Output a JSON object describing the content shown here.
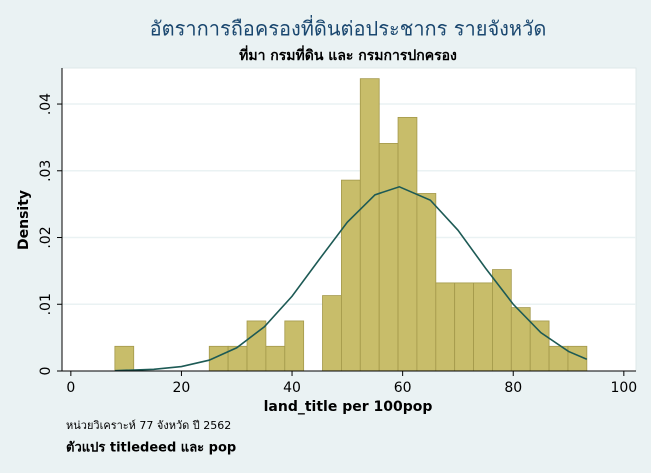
{
  "chart_data": {
    "type": "histogram",
    "title": "อัตราการถือครองที่ดินต่อประชากร รายจังหวัด",
    "subtitle": "ที่มา กรมที่ดิน และ กรมการปกครอง",
    "x_label": "land_title per 100pop",
    "y_label": "Density",
    "notes": [
      "หน่วยวิเคราะห์ 77 จังหวัด ปี 2562",
      "ตัวแปร titledeed และ pop"
    ],
    "bins": [
      7.96,
      11.37,
      14.79,
      18.2,
      21.62,
      25.03,
      28.44,
      31.86,
      35.27,
      38.69,
      42.1,
      45.51,
      48.93,
      52.34,
      55.76,
      59.17,
      62.58,
      66.0,
      69.41,
      72.83,
      76.24,
      79.65,
      83.07,
      86.48,
      89.9,
      93.31
    ],
    "values": [
      0.0037,
      0,
      0,
      0,
      0,
      0.0037,
      0.0037,
      0.0075,
      0.0037,
      0.0075,
      0,
      0.0113,
      0.0286,
      0.0438,
      0.0341,
      0.038,
      0.0266,
      0.0132,
      0.0132,
      0.0132,
      0.0152,
      0.0095,
      0.0075,
      0.0037,
      0.0037
    ],
    "color": "#c8bd6a",
    "edge_color": "#a3984a",
    "overlay": {
      "type": "line",
      "color": "#1d5a55",
      "x": [
        8,
        15,
        20,
        25,
        30,
        35,
        40,
        45,
        50,
        55,
        59.4,
        65,
        70,
        75,
        80,
        85,
        90,
        93.3
      ],
      "values": [
        5e-05,
        0.00025,
        0.00067,
        0.00162,
        0.00348,
        0.00663,
        0.0112,
        0.0168,
        0.0223,
        0.0264,
        0.0276,
        0.0256,
        0.0211,
        0.0154,
        0.01,
        0.00574,
        0.00293,
        0.00176
      ]
    },
    "xlim": [
      -1.6,
      102.2
    ],
    "ylim": [
      0,
      0.0454
    ],
    "xticks": [
      0,
      20,
      40,
      60,
      80,
      100
    ],
    "yticks": [
      0,
      {
        "value": 0.01,
        "label": ".01"
      },
      {
        "value": 0.02,
        "label": ".02"
      },
      {
        "value": 0.03,
        "label": ".03"
      },
      {
        "value": 0.04,
        "label": ".04"
      }
    ],
    "grid": true
  }
}
